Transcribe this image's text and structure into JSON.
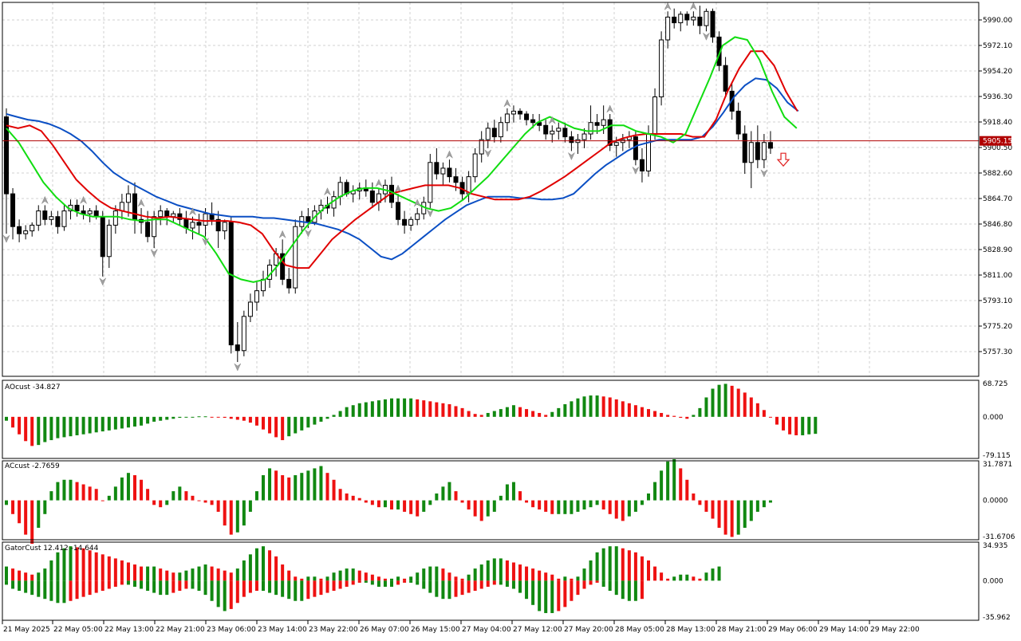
{
  "colors": {
    "background": "#ffffff",
    "frame": "#000000",
    "grid": "#d0d0d0",
    "bull_candle": "#ffffff",
    "bear_candle": "#000000",
    "fractal": "#a0a0a0",
    "jaw": "#0b4fc4",
    "teeth": "#e00000",
    "lips": "#11dd11",
    "price_line": "#b00000",
    "hist_up": "#118811",
    "hist_down": "#ee1111",
    "arrow": "#e02020"
  },
  "icons": {
    "signal_arrow": "down-arrow-icon",
    "fractal_marker": "fractal-arrow-icon"
  },
  "main": {
    "price_scale": [
      "5990.00",
      "5972.10",
      "5954.20",
      "5936.30",
      "5918.40",
      "5900.50",
      "5882.60",
      "5864.70",
      "5846.80",
      "5828.90",
      "5811.00",
      "5793.10",
      "5775.20",
      "5757.30"
    ],
    "current_price": "5905.15"
  },
  "ao_panel": {
    "label": "AOcust -34.827",
    "scale": [
      "68.725",
      "0.000",
      "-79.115"
    ]
  },
  "ac_panel": {
    "label": "ACcust -2.7659",
    "scale": [
      "31.7871",
      "0.0000",
      "-31.6706"
    ]
  },
  "gator_panel": {
    "label": "GatorCust 12.412 -14.644",
    "scale": [
      "34.935",
      "0.000",
      "-35.962"
    ]
  },
  "time_axis": [
    "21 May 2025",
    "22 May 05:00",
    "22 May 13:00",
    "22 May 21:00",
    "23 May 06:00",
    "23 May 14:00",
    "23 May 22:00",
    "26 May 07:00",
    "26 May 15:00",
    "27 May 04:00",
    "27 May 12:00",
    "27 May 20:00",
    "28 May 05:00",
    "28 May 13:00",
    "28 May 21:00",
    "29 May 06:00",
    "29 May 14:00",
    "29 May 22:00"
  ],
  "chart_data": {
    "type": "candlestick",
    "price_range": [
      5746,
      6000
    ],
    "ohlc": [
      [
        5922,
        5928,
        5840,
        5868
      ],
      [
        5868,
        5872,
        5836,
        5845
      ],
      [
        5845,
        5850,
        5834,
        5840
      ],
      [
        5840,
        5846,
        5836,
        5842
      ],
      [
        5842,
        5848,
        5838,
        5846
      ],
      [
        5846,
        5860,
        5842,
        5856
      ],
      [
        5856,
        5860,
        5846,
        5850
      ],
      [
        5850,
        5856,
        5846,
        5852
      ],
      [
        5852,
        5856,
        5840,
        5845
      ],
      [
        5845,
        5860,
        5842,
        5856
      ],
      [
        5856,
        5864,
        5850,
        5860
      ],
      [
        5860,
        5864,
        5852,
        5856
      ],
      [
        5856,
        5860,
        5850,
        5854
      ],
      [
        5854,
        5858,
        5848,
        5856
      ],
      [
        5856,
        5860,
        5850,
        5852
      ],
      [
        5852,
        5856,
        5810,
        5824
      ],
      [
        5824,
        5850,
        5816,
        5846
      ],
      [
        5846,
        5860,
        5840,
        5856
      ],
      [
        5856,
        5868,
        5850,
        5862
      ],
      [
        5862,
        5874,
        5852,
        5868
      ],
      [
        5868,
        5876,
        5840,
        5850
      ],
      [
        5850,
        5858,
        5840,
        5848
      ],
      [
        5848,
        5856,
        5834,
        5838
      ],
      [
        5838,
        5856,
        5830,
        5852
      ],
      [
        5852,
        5860,
        5846,
        5856
      ],
      [
        5856,
        5858,
        5846,
        5852
      ],
      [
        5852,
        5856,
        5848,
        5854
      ],
      [
        5854,
        5858,
        5846,
        5850
      ],
      [
        5850,
        5856,
        5840,
        5844
      ],
      [
        5844,
        5852,
        5836,
        5848
      ],
      [
        5848,
        5854,
        5840,
        5846
      ],
      [
        5846,
        5858,
        5838,
        5854
      ],
      [
        5854,
        5862,
        5846,
        5850
      ],
      [
        5850,
        5856,
        5830,
        5842
      ],
      [
        5842,
        5850,
        5836,
        5848
      ],
      [
        5848,
        5852,
        5756,
        5762
      ],
      [
        5762,
        5778,
        5750,
        5758
      ],
      [
        5758,
        5786,
        5754,
        5782
      ],
      [
        5782,
        5798,
        5778,
        5792
      ],
      [
        5792,
        5806,
        5786,
        5800
      ],
      [
        5800,
        5814,
        5796,
        5808
      ],
      [
        5808,
        5822,
        5802,
        5818
      ],
      [
        5818,
        5830,
        5810,
        5826
      ],
      [
        5826,
        5836,
        5804,
        5808
      ],
      [
        5808,
        5816,
        5798,
        5802
      ],
      [
        5802,
        5850,
        5798,
        5845
      ],
      [
        5845,
        5856,
        5840,
        5852
      ],
      [
        5852,
        5858,
        5844,
        5848
      ],
      [
        5848,
        5860,
        5846,
        5856
      ],
      [
        5856,
        5864,
        5850,
        5860
      ],
      [
        5860,
        5866,
        5854,
        5858
      ],
      [
        5858,
        5870,
        5852,
        5866
      ],
      [
        5866,
        5880,
        5860,
        5876
      ],
      [
        5876,
        5878,
        5866,
        5868
      ],
      [
        5868,
        5874,
        5862,
        5870
      ],
      [
        5870,
        5876,
        5864,
        5872
      ],
      [
        5872,
        5878,
        5866,
        5870
      ],
      [
        5870,
        5876,
        5858,
        5862
      ],
      [
        5862,
        5872,
        5856,
        5868
      ],
      [
        5868,
        5878,
        5862,
        5874
      ],
      [
        5874,
        5880,
        5858,
        5862
      ],
      [
        5862,
        5868,
        5846,
        5850
      ],
      [
        5850,
        5856,
        5840,
        5846
      ],
      [
        5846,
        5852,
        5842,
        5850
      ],
      [
        5850,
        5858,
        5846,
        5854
      ],
      [
        5854,
        5866,
        5850,
        5862
      ],
      [
        5862,
        5896,
        5858,
        5890
      ],
      [
        5890,
        5900,
        5878,
        5882
      ],
      [
        5882,
        5890,
        5874,
        5886
      ],
      [
        5886,
        5892,
        5876,
        5880
      ],
      [
        5880,
        5886,
        5870,
        5876
      ],
      [
        5876,
        5880,
        5864,
        5868
      ],
      [
        5868,
        5884,
        5862,
        5880
      ],
      [
        5880,
        5900,
        5876,
        5896
      ],
      [
        5896,
        5912,
        5890,
        5906
      ],
      [
        5906,
        5918,
        5900,
        5914
      ],
      [
        5914,
        5920,
        5904,
        5908
      ],
      [
        5908,
        5922,
        5904,
        5918
      ],
      [
        5918,
        5928,
        5912,
        5924
      ],
      [
        5924,
        5930,
        5918,
        5926
      ],
      [
        5926,
        5928,
        5920,
        5924
      ],
      [
        5924,
        5926,
        5916,
        5920
      ],
      [
        5920,
        5924,
        5914,
        5918
      ],
      [
        5918,
        5924,
        5912,
        5916
      ],
      [
        5916,
        5920,
        5906,
        5910
      ],
      [
        5910,
        5916,
        5904,
        5912
      ],
      [
        5912,
        5918,
        5906,
        5914
      ],
      [
        5914,
        5918,
        5904,
        5908
      ],
      [
        5908,
        5912,
        5898,
        5904
      ],
      [
        5904,
        5910,
        5896,
        5906
      ],
      [
        5906,
        5914,
        5900,
        5910
      ],
      [
        5910,
        5930,
        5906,
        5918
      ],
      [
        5918,
        5924,
        5910,
        5916
      ],
      [
        5916,
        5930,
        5910,
        5920
      ],
      [
        5920,
        5924,
        5898,
        5902
      ],
      [
        5902,
        5908,
        5894,
        5904
      ],
      [
        5904,
        5910,
        5898,
        5906
      ],
      [
        5906,
        5912,
        5900,
        5908
      ],
      [
        5908,
        5912,
        5888,
        5892
      ],
      [
        5892,
        5900,
        5876,
        5884
      ],
      [
        5884,
        5916,
        5880,
        5910
      ],
      [
        5910,
        5942,
        5906,
        5936
      ],
      [
        5936,
        5982,
        5930,
        5976
      ],
      [
        5976,
        5996,
        5970,
        5992
      ],
      [
        5992,
        5998,
        5984,
        5988
      ],
      [
        5988,
        5996,
        5982,
        5994
      ],
      [
        5994,
        5996,
        5986,
        5990
      ],
      [
        5990,
        5996,
        5986,
        5992
      ],
      [
        5992,
        6000,
        5980,
        5986
      ],
      [
        5986,
        5998,
        5982,
        5996
      ],
      [
        5996,
        5998,
        5974,
        5978
      ],
      [
        5978,
        5982,
        5954,
        5958
      ],
      [
        5958,
        5964,
        5936,
        5940
      ],
      [
        5940,
        5946,
        5920,
        5926
      ],
      [
        5926,
        5932,
        5906,
        5910
      ],
      [
        5910,
        5916,
        5882,
        5890
      ],
      [
        5890,
        5912,
        5872,
        5904
      ],
      [
        5904,
        5916,
        5886,
        5892
      ],
      [
        5892,
        5910,
        5886,
        5904
      ],
      [
        5904,
        5912,
        5896,
        5900
      ]
    ],
    "jaw": [
      5924,
      5922,
      5920,
      5919,
      5917,
      5914,
      5910,
      5905,
      5898,
      5890,
      5883,
      5878,
      5874,
      5870,
      5866,
      5863,
      5860,
      5858,
      5856,
      5854,
      5853,
      5852,
      5852,
      5852,
      5851,
      5851,
      5850,
      5849,
      5848,
      5847,
      5845,
      5843,
      5840,
      5836,
      5830,
      5824,
      5822,
      5826,
      5832,
      5838,
      5844,
      5850,
      5855,
      5860,
      5863,
      5866,
      5866,
      5866,
      5865,
      5865,
      5864,
      5864,
      5865,
      5868,
      5875,
      5882,
      5888,
      5893,
      5898,
      5902,
      5904,
      5906,
      5906,
      5906,
      5906,
      5908,
      5915,
      5925,
      5936,
      5944,
      5949,
      5948,
      5942,
      5932,
      5926
    ],
    "teeth": [
      5916,
      5914,
      5916,
      5912,
      5902,
      5890,
      5878,
      5870,
      5863,
      5858,
      5856,
      5854,
      5852,
      5851,
      5852,
      5851,
      5850,
      5849,
      5849,
      5849,
      5848,
      5846,
      5840,
      5828,
      5818,
      5816,
      5816,
      5826,
      5836,
      5843,
      5850,
      5856,
      5862,
      5868,
      5870,
      5872,
      5874,
      5874,
      5874,
      5872,
      5868,
      5866,
      5864,
      5864,
      5864,
      5866,
      5870,
      5875,
      5880,
      5886,
      5892,
      5898,
      5904,
      5907,
      5909,
      5910,
      5910,
      5910,
      5910,
      5908,
      5908,
      5920,
      5940,
      5956,
      5968,
      5968,
      5958,
      5940,
      5926
    ],
    "lips": [
      5914,
      5904,
      5890,
      5876,
      5866,
      5858,
      5854,
      5852,
      5852,
      5852,
      5850,
      5849,
      5850,
      5850,
      5846,
      5842,
      5838,
      5826,
      5812,
      5808,
      5806,
      5808,
      5818,
      5830,
      5842,
      5852,
      5860,
      5866,
      5870,
      5872,
      5872,
      5870,
      5866,
      5862,
      5858,
      5856,
      5858,
      5864,
      5872,
      5880,
      5890,
      5900,
      5910,
      5918,
      5922,
      5918,
      5914,
      5912,
      5912,
      5916,
      5916,
      5912,
      5910,
      5908,
      5904,
      5910,
      5930,
      5950,
      5972,
      5978,
      5976,
      5962,
      5940,
      5922,
      5914
    ],
    "fractals": [
      {
        "bar": 0,
        "dir": "down"
      },
      {
        "bar": 6,
        "dir": "up"
      },
      {
        "bar": 12,
        "dir": "up"
      },
      {
        "bar": 15,
        "dir": "down"
      },
      {
        "bar": 21,
        "dir": "up"
      },
      {
        "bar": 23,
        "dir": "down"
      },
      {
        "bar": 29,
        "dir": "up"
      },
      {
        "bar": 31,
        "dir": "down"
      },
      {
        "bar": 36,
        "dir": "down"
      },
      {
        "bar": 43,
        "dir": "up"
      },
      {
        "bar": 47,
        "dir": "down"
      },
      {
        "bar": 50,
        "dir": "up"
      },
      {
        "bar": 58,
        "dir": "up"
      },
      {
        "bar": 61,
        "dir": "up"
      },
      {
        "bar": 64,
        "dir": "up"
      },
      {
        "bar": 66,
        "dir": "down"
      },
      {
        "bar": 69,
        "dir": "up"
      },
      {
        "bar": 75,
        "dir": "down"
      },
      {
        "bar": 78,
        "dir": "up"
      },
      {
        "bar": 85,
        "dir": "up"
      },
      {
        "bar": 88,
        "dir": "down"
      },
      {
        "bar": 94,
        "dir": "up"
      },
      {
        "bar": 98,
        "dir": "down"
      },
      {
        "bar": 103,
        "dir": "up"
      },
      {
        "bar": 107,
        "dir": "up"
      },
      {
        "bar": 109,
        "dir": "down"
      },
      {
        "bar": 118,
        "dir": "down"
      }
    ],
    "signal": {
      "bar": 121,
      "dir": "down",
      "price": 5892
    },
    "ao": [
      -8,
      -22,
      -36,
      -50,
      -60,
      -58,
      -52,
      -48,
      -44,
      -42,
      -40,
      -38,
      -36,
      -34,
      -32,
      -30,
      -28,
      -26,
      -24,
      -22,
      -20,
      -18,
      -14,
      -10,
      -8,
      -6,
      -4,
      -2,
      -1,
      0,
      1,
      1,
      0,
      -1,
      -2,
      -4,
      -6,
      -8,
      -12,
      -18,
      -26,
      -34,
      -42,
      -48,
      -40,
      -34,
      -28,
      -22,
      -16,
      -10,
      -4,
      4,
      12,
      20,
      24,
      28,
      30,
      32,
      34,
      36,
      38,
      38,
      38,
      38,
      36,
      34,
      32,
      30,
      28,
      26,
      22,
      18,
      12,
      6,
      4,
      8,
      12,
      16,
      20,
      24,
      20,
      16,
      12,
      8,
      4,
      10,
      18,
      26,
      32,
      38,
      42,
      44,
      44,
      42,
      40,
      36,
      32,
      28,
      24,
      20,
      16,
      12,
      8,
      4,
      2,
      -2,
      -4,
      4,
      18,
      40,
      58,
      66,
      68,
      64,
      58,
      50,
      40,
      28,
      14,
      0,
      -16,
      -28,
      -36,
      -38,
      -38,
      -36,
      -35
    ],
    "ac": [
      -4,
      -12,
      -20,
      -30,
      -38,
      -24,
      -12,
      8,
      16,
      18,
      18,
      16,
      14,
      12,
      10,
      0,
      4,
      12,
      20,
      24,
      22,
      18,
      10,
      -4,
      -6,
      -4,
      8,
      12,
      8,
      4,
      0,
      -2,
      -4,
      -10,
      -22,
      -30,
      -28,
      -22,
      -10,
      8,
      22,
      28,
      26,
      22,
      20,
      22,
      24,
      26,
      28,
      30,
      24,
      18,
      10,
      6,
      4,
      2,
      -2,
      -4,
      -6,
      -6,
      -8,
      -8,
      -10,
      -12,
      -14,
      -10,
      -4,
      6,
      12,
      16,
      8,
      -2,
      -8,
      -14,
      -18,
      -14,
      -10,
      4,
      14,
      16,
      8,
      -2,
      -6,
      -8,
      -10,
      -12,
      -12,
      -12,
      -12,
      -10,
      -8,
      -6,
      -4,
      -8,
      -12,
      -16,
      -18,
      -14,
      -10,
      -4,
      6,
      16,
      26,
      34,
      36,
      28,
      18,
      6,
      -4,
      -10,
      -16,
      -24,
      -30,
      -32,
      -30,
      -24,
      -18,
      -10,
      -6,
      -2
    ],
    "gator_upper": [
      14,
      12,
      10,
      8,
      6,
      8,
      12,
      20,
      28,
      32,
      34,
      33,
      32,
      30,
      28,
      26,
      24,
      22,
      20,
      18,
      16,
      14,
      14,
      14,
      12,
      10,
      8,
      8,
      10,
      12,
      14,
      16,
      14,
      12,
      10,
      8,
      12,
      20,
      26,
      32,
      34,
      30,
      24,
      16,
      10,
      4,
      -2,
      -4,
      -4,
      -2,
      4,
      8,
      10,
      12,
      12,
      10,
      8,
      6,
      4,
      2,
      -2,
      -4,
      -2,
      4,
      8,
      12,
      14,
      14,
      12,
      8,
      4,
      -2,
      6,
      12,
      16,
      20,
      22,
      22,
      20,
      18,
      16,
      14,
      12,
      10,
      8,
      6,
      -2,
      -4,
      -2,
      4,
      12,
      20,
      28,
      32,
      34,
      34,
      32,
      30,
      28,
      24,
      20,
      14,
      8,
      -2,
      -4,
      -6,
      -6,
      -4,
      -2,
      8,
      12,
      14
    ],
    "gator_lower": [
      -4,
      -8,
      -10,
      -12,
      -14,
      -16,
      -18,
      -20,
      -22,
      -22,
      -20,
      -18,
      -16,
      -14,
      -12,
      -10,
      -8,
      -6,
      -4,
      -4,
      -6,
      -8,
      -10,
      -12,
      -14,
      -14,
      -12,
      -10,
      -8,
      -8,
      -10,
      -14,
      -20,
      -26,
      -30,
      -28,
      -22,
      -16,
      -12,
      -10,
      -10,
      -12,
      -14,
      -16,
      -18,
      -20,
      -20,
      -18,
      -16,
      -14,
      -12,
      -10,
      -8,
      -6,
      -4,
      -2,
      -2,
      -4,
      -6,
      -6,
      -6,
      -4,
      -2,
      -2,
      -4,
      -8,
      -12,
      -16,
      -18,
      -18,
      -16,
      -14,
      -12,
      -10,
      -8,
      -6,
      -4,
      -4,
      -6,
      -8,
      -12,
      -18,
      -24,
      -30,
      -32,
      -32,
      -30,
      -26,
      -20,
      -14,
      -8,
      -4,
      -2,
      -6,
      -10,
      -14,
      -18,
      -20,
      -20,
      -18
    ]
  }
}
